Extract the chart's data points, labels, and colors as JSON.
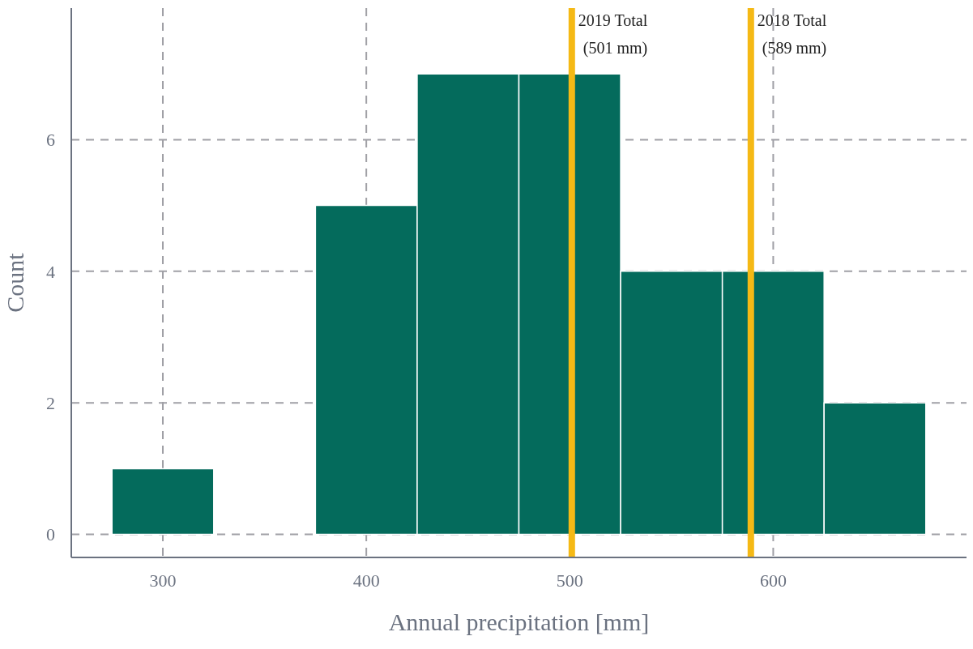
{
  "chart_data": {
    "type": "histogram",
    "xlabel": "Annual precipitation [mm]",
    "ylabel": "Count",
    "bins": [
      275,
      325,
      375,
      425,
      475,
      525,
      575,
      625,
      675
    ],
    "values": [
      1,
      0,
      5,
      7,
      7,
      4,
      4,
      2
    ],
    "color": "#046b5c",
    "xlim": [
      255,
      695
    ],
    "xticks": [
      300,
      400,
      500,
      600
    ],
    "ylim": [
      -0.35,
      8
    ],
    "yticks": [
      0,
      2,
      4,
      6
    ],
    "grid": true,
    "ref_lines": [
      {
        "axis": "x",
        "value": 501,
        "label": "2019 Total\n(501 mm)",
        "color": "#f5b915"
      },
      {
        "axis": "x",
        "value": 589,
        "label": "2018 Total\n(589 mm)",
        "color": "#f5b915"
      }
    ]
  }
}
